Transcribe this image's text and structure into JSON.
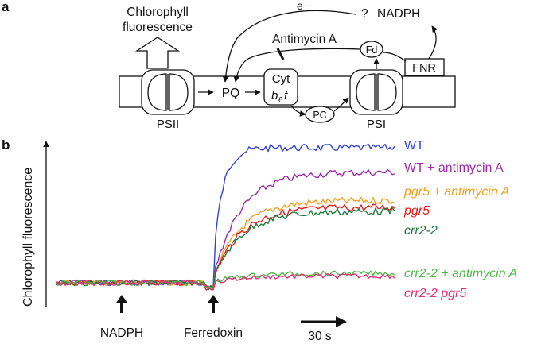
{
  "panel_a": {
    "label": "a",
    "fluorescence_line1": "Chlorophyll",
    "fluorescence_line2": "fluorescence",
    "electron": "e−",
    "question": "?",
    "nadph": "NADPH",
    "antimycin": "Antimycin A",
    "fd": "Fd",
    "fnr": "FNR",
    "pq": "PQ",
    "cyt_line1": "Cyt",
    "cyt_b": "b",
    "cyt_sub": "6",
    "cyt_f": "f",
    "pc": "PC",
    "psii": "PSII",
    "psi": "PSI"
  },
  "panel_b": {
    "label": "b",
    "ylabel": "Chlorophyll fluorescence",
    "arrow_nadph": "NADPH",
    "arrow_ferredoxin": "Ferredoxin",
    "scale_label": "30 s",
    "colors": {
      "wt": "#3344c8",
      "wt_anti": "#9a2aa6",
      "pgr5_anti": "#f0a020",
      "pgr5": "#e22020",
      "crr22": "#1e7a3c",
      "crr22_anti": "#50b848",
      "crr22_pgr5": "#e0307a"
    }
  },
  "chart_data": {
    "type": "line",
    "title": "",
    "xlabel": "",
    "ylabel": "Chlorophyll fluorescence",
    "annotations": [
      "NADPH",
      "Ferredoxin",
      "30 s"
    ],
    "series": [
      {
        "name": "WT",
        "color": "#3344c8",
        "level": 1.0
      },
      {
        "name": "WT + antimycin A",
        "color": "#9a2aa6",
        "level": 0.82
      },
      {
        "name": "pgr5 + antimycin A",
        "color": "#f0a020",
        "level": 0.61
      },
      {
        "name": "pgr5",
        "color": "#e22020",
        "level": 0.56
      },
      {
        "name": "crr2-2",
        "color": "#1e7a3c",
        "level": 0.53
      },
      {
        "name": "crr2-2 + antimycin A",
        "color": "#50b848",
        "level": 0.07
      },
      {
        "name": "crr2-2 pgr5",
        "color": "#e0307a",
        "level": 0.05
      }
    ]
  }
}
